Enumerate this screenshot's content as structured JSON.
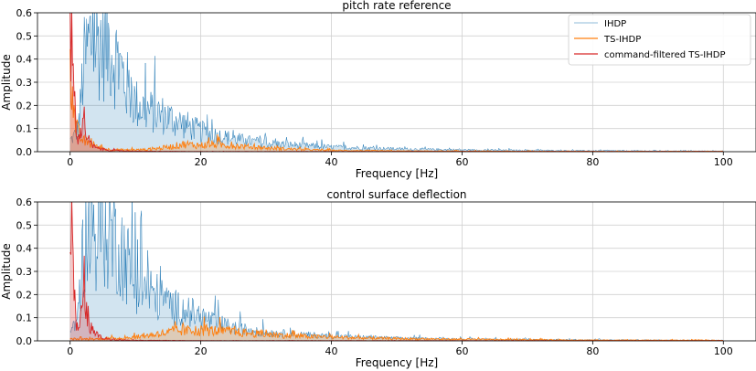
{
  "chart_data": [
    {
      "type": "area",
      "title": "pitch rate reference",
      "xlabel": "Frequency [Hz]",
      "ylabel": "Amplitude",
      "xlim": [
        -5,
        105
      ],
      "ylim": [
        0,
        0.6
      ],
      "xticks": [
        0,
        20,
        40,
        60,
        80,
        100
      ],
      "yticks": [
        0.0,
        0.1,
        0.2,
        0.3,
        0.4,
        0.5,
        0.6
      ],
      "grid": true,
      "legend": "top-right",
      "series": [
        {
          "name": "IHDP",
          "color": "#1f77b4",
          "style": "noisy-filled",
          "envelope_x": [
            0,
            1,
            1.5,
            2,
            3,
            4,
            5,
            6,
            7,
            8,
            9,
            10,
            12,
            14,
            16,
            18,
            20,
            22,
            25,
            30,
            35,
            40,
            50,
            60,
            70,
            80,
            90,
            100
          ],
          "envelope_y": [
            0.06,
            0.1,
            0.2,
            0.45,
            0.6,
            0.6,
            0.6,
            0.58,
            0.5,
            0.42,
            0.33,
            0.26,
            0.22,
            0.2,
            0.17,
            0.14,
            0.11,
            0.09,
            0.07,
            0.045,
            0.035,
            0.025,
            0.015,
            0.01,
            0.007,
            0.005,
            0.004,
            0.003
          ]
        },
        {
          "name": "TS-IHDP",
          "color": "#ff7f0e",
          "style": "noisy-filled",
          "envelope_x": [
            0,
            0.3,
            0.6,
            1,
            1.5,
            2,
            3,
            4,
            6,
            8,
            10,
            12,
            14,
            16,
            17,
            18,
            19,
            20,
            22,
            24,
            26,
            28,
            30,
            35,
            40,
            50,
            60,
            80,
            100
          ],
          "envelope_y": [
            0.6,
            0.45,
            0.2,
            0.12,
            0.08,
            0.06,
            0.04,
            0.025,
            0.012,
            0.01,
            0.01,
            0.012,
            0.02,
            0.03,
            0.04,
            0.04,
            0.035,
            0.035,
            0.04,
            0.035,
            0.03,
            0.025,
            0.02,
            0.012,
            0.007,
            0.004,
            0.003,
            0.002,
            0.002
          ]
        },
        {
          "name": "command-filtered TS-IHDP",
          "color": "#d62728",
          "style": "noisy-filled",
          "envelope_x": [
            0,
            0.2,
            0.4,
            0.6,
            0.8,
            1,
            1.3,
            1.6,
            2,
            2.3,
            2.6,
            3,
            3.5,
            4,
            5,
            6,
            8,
            10,
            12,
            20,
            40,
            100
          ],
          "envelope_y": [
            0.6,
            0.6,
            0.45,
            0.25,
            0.15,
            0.1,
            0.06,
            0.12,
            0.2,
            0.14,
            0.08,
            0.05,
            0.03,
            0.02,
            0.012,
            0.008,
            0.005,
            0.003,
            0.002,
            0.001,
            0.001,
            0.001
          ]
        }
      ]
    },
    {
      "type": "area",
      "title": "control surface deflection",
      "xlabel": "Frequency [Hz]",
      "ylabel": "Amplitude",
      "xlim": [
        -5,
        105
      ],
      "ylim": [
        0,
        0.6
      ],
      "xticks": [
        0,
        20,
        40,
        60,
        80,
        100
      ],
      "yticks": [
        0.0,
        0.1,
        0.2,
        0.3,
        0.4,
        0.5,
        0.6
      ],
      "grid": true,
      "series": [
        {
          "name": "IHDP",
          "color": "#1f77b4",
          "style": "noisy-filled",
          "envelope_x": [
            0,
            1,
            1.5,
            2,
            3,
            4,
            5,
            6,
            7,
            8,
            9,
            10,
            12,
            14,
            16,
            18,
            20,
            22,
            25,
            30,
            35,
            40,
            50,
            60,
            70,
            80,
            90,
            100
          ],
          "envelope_y": [
            0.05,
            0.1,
            0.25,
            0.5,
            0.6,
            0.6,
            0.6,
            0.6,
            0.55,
            0.48,
            0.4,
            0.33,
            0.27,
            0.22,
            0.18,
            0.16,
            0.13,
            0.1,
            0.07,
            0.045,
            0.035,
            0.025,
            0.015,
            0.01,
            0.007,
            0.005,
            0.004,
            0.003
          ]
        },
        {
          "name": "TS-IHDP",
          "color": "#ff7f0e",
          "style": "noisy-filled",
          "envelope_x": [
            0,
            1,
            2,
            4,
            6,
            8,
            10,
            12,
            14,
            16,
            18,
            20,
            22,
            24,
            26,
            28,
            30,
            35,
            40,
            45,
            50,
            60,
            80,
            100
          ],
          "envelope_y": [
            0.01,
            0.01,
            0.01,
            0.01,
            0.012,
            0.015,
            0.02,
            0.03,
            0.04,
            0.05,
            0.055,
            0.055,
            0.055,
            0.05,
            0.045,
            0.04,
            0.035,
            0.025,
            0.02,
            0.015,
            0.012,
            0.008,
            0.004,
            0.003
          ]
        },
        {
          "name": "command-filtered TS-IHDP",
          "color": "#d62728",
          "style": "noisy-filled",
          "envelope_x": [
            0,
            0.2,
            0.4,
            0.6,
            0.8,
            1,
            1.2,
            1.5,
            2,
            2.5,
            3,
            3.5,
            4,
            5,
            6,
            8,
            10,
            20,
            100
          ],
          "envelope_y": [
            0.6,
            0.6,
            0.5,
            0.3,
            0.15,
            0.08,
            0.05,
            0.1,
            0.2,
            0.16,
            0.09,
            0.05,
            0.03,
            0.015,
            0.01,
            0.005,
            0.003,
            0.001,
            0.001
          ]
        }
      ]
    }
  ]
}
